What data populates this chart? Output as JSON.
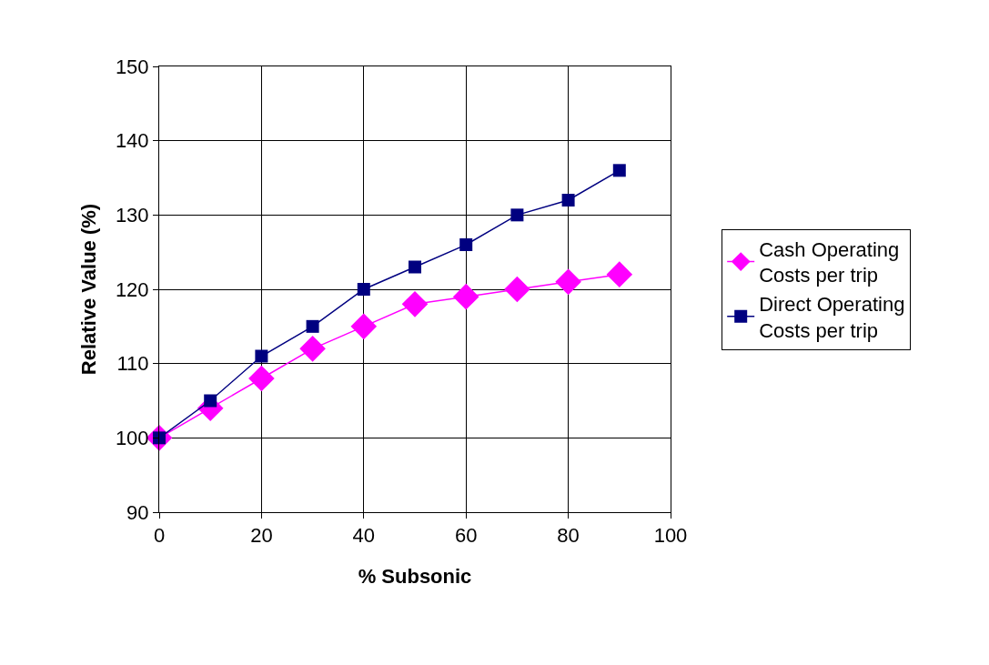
{
  "chart_data": {
    "type": "line",
    "xlabel": "% Subsonic",
    "ylabel": "Relative Value (%)",
    "x": [
      0,
      10,
      20,
      30,
      40,
      50,
      60,
      70,
      80,
      90
    ],
    "series": [
      {
        "name": "Cash Operating Costs per trip",
        "color": "#ff00ff",
        "marker": "diamond",
        "values": [
          100,
          104,
          108,
          112,
          115,
          118,
          119,
          120,
          121,
          122
        ]
      },
      {
        "name": "Direct Operating Costs per trip",
        "color": "#000080",
        "marker": "square",
        "values": [
          100,
          105,
          111,
          115,
          120,
          123,
          126,
          130,
          132,
          136
        ]
      }
    ],
    "xlim": [
      0,
      100
    ],
    "xticks": [
      0,
      20,
      40,
      60,
      80,
      100
    ],
    "ylim": [
      90,
      150
    ],
    "yticks": [
      90,
      100,
      110,
      120,
      130,
      140,
      150
    ],
    "grid": true,
    "legend": "right",
    "line_style": "solid"
  }
}
